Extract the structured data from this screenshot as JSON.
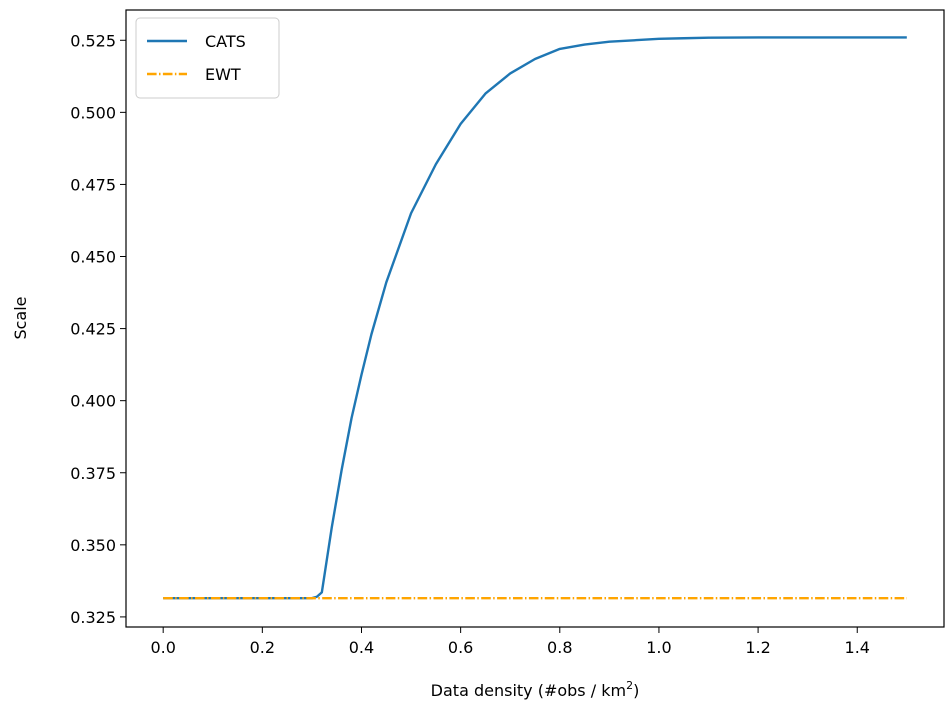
{
  "chart_data": {
    "type": "line",
    "title": "",
    "xlabel": "Data density (#obs / km",
    "xlabel_superscript": "2",
    "xlabel_suffix": ")",
    "ylabel": "Scale",
    "xlim": [
      -0.075,
      1.575
    ],
    "ylim": [
      0.3215,
      0.5355
    ],
    "x_ticks": [
      0.0,
      0.2,
      0.4,
      0.6,
      0.8,
      1.0,
      1.2,
      1.4
    ],
    "x_tick_labels": [
      "0.0",
      "0.2",
      "0.4",
      "0.6",
      "0.8",
      "1.0",
      "1.2",
      "1.4"
    ],
    "y_ticks": [
      0.325,
      0.35,
      0.375,
      0.4,
      0.425,
      0.45,
      0.475,
      0.5,
      0.525
    ],
    "y_tick_labels": [
      "0.325",
      "0.350",
      "0.375",
      "0.400",
      "0.425",
      "0.450",
      "0.475",
      "0.500",
      "0.525"
    ],
    "grid": false,
    "legend_position": "top-left",
    "series": [
      {
        "name": "CATS",
        "color": "#1f77b4",
        "style": "solid",
        "x": [
          0.0,
          0.05,
          0.1,
          0.15,
          0.2,
          0.25,
          0.3,
          0.31,
          0.32,
          0.34,
          0.36,
          0.38,
          0.4,
          0.42,
          0.45,
          0.5,
          0.55,
          0.6,
          0.65,
          0.7,
          0.75,
          0.8,
          0.85,
          0.9,
          0.95,
          1.0,
          1.05,
          1.1,
          1.2,
          1.3,
          1.4,
          1.5
        ],
        "y": [
          0.3315,
          0.3315,
          0.3315,
          0.3315,
          0.3315,
          0.3315,
          0.3315,
          0.332,
          0.3335,
          0.356,
          0.376,
          0.394,
          0.409,
          0.423,
          0.441,
          0.465,
          0.482,
          0.496,
          0.5065,
          0.5135,
          0.5185,
          0.522,
          0.5235,
          0.5245,
          0.525,
          0.5255,
          0.5257,
          0.5259,
          0.526,
          0.526,
          0.526,
          0.526
        ]
      },
      {
        "name": "EWT",
        "color": "#ffa500",
        "style": "dashdot",
        "x": [
          0.0,
          1.5
        ],
        "y": [
          0.3315,
          0.3315
        ]
      }
    ]
  }
}
